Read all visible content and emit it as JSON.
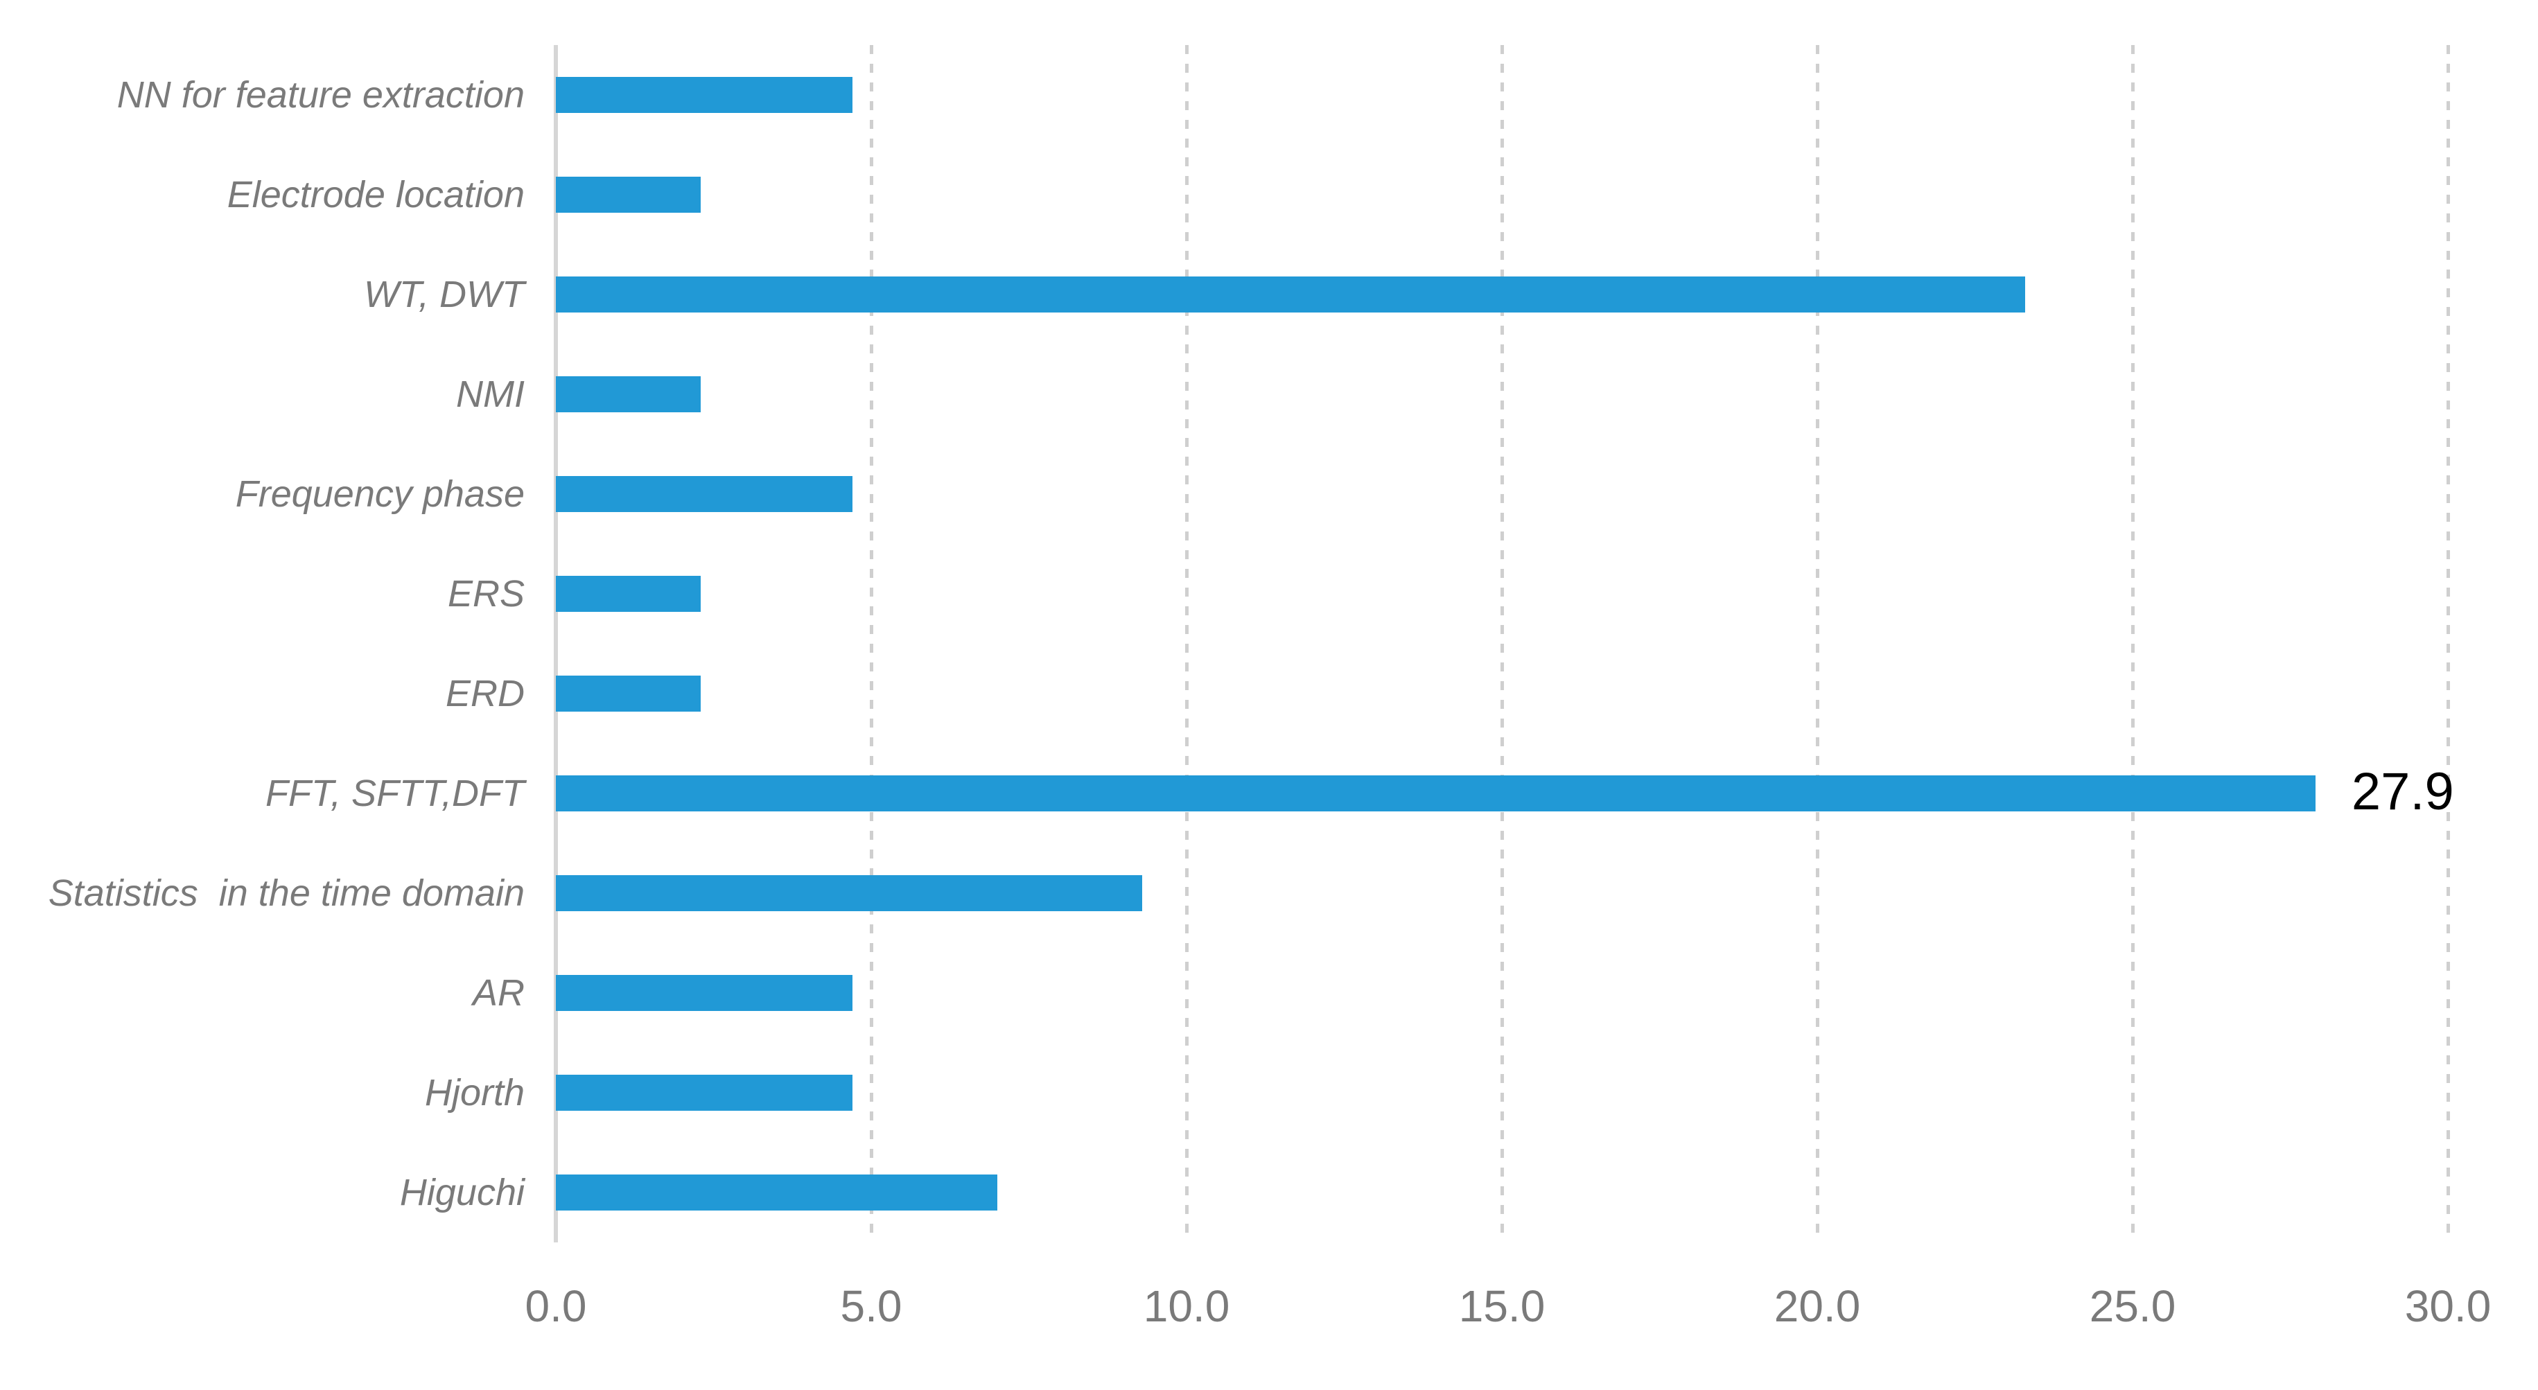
{
  "chart_data": {
    "type": "bar",
    "orientation": "horizontal",
    "title": "",
    "xlabel": "",
    "ylabel": "",
    "categories": [
      "NN for feature extraction",
      "Electrode location",
      "WT, DWT",
      "NMI",
      "Frequency phase",
      "ERS",
      "ERD",
      "FFT, SFTT,DFT",
      "Statistics  in the time domain",
      "AR",
      "Hjorth",
      "Higuchi"
    ],
    "values": [
      4.7,
      2.3,
      23.3,
      2.3,
      4.7,
      2.3,
      2.3,
      27.9,
      9.3,
      4.7,
      4.7,
      7.0
    ],
    "xlim": [
      0,
      30
    ],
    "xtick_labels": [
      "0.0",
      "5.0",
      "10.0",
      "15.0",
      "20.0",
      "25.0",
      "30.0"
    ],
    "xtick_values": [
      0,
      5,
      10,
      15,
      20,
      25,
      30
    ],
    "grid": "vertical dotted gridlines at each x tick, solid axis line at 0",
    "legend": "none",
    "annotations": [
      {
        "category_index": 7,
        "text": "27.9"
      }
    ],
    "colors": {
      "bar": "#2199d6",
      "axis_line": "#d6d6d6",
      "gridline": "#cfcfcf",
      "category_label": "#7a7a7a",
      "tick_label": "#7a7a7a",
      "data_label": "#000000",
      "background": "#ffffff"
    }
  }
}
